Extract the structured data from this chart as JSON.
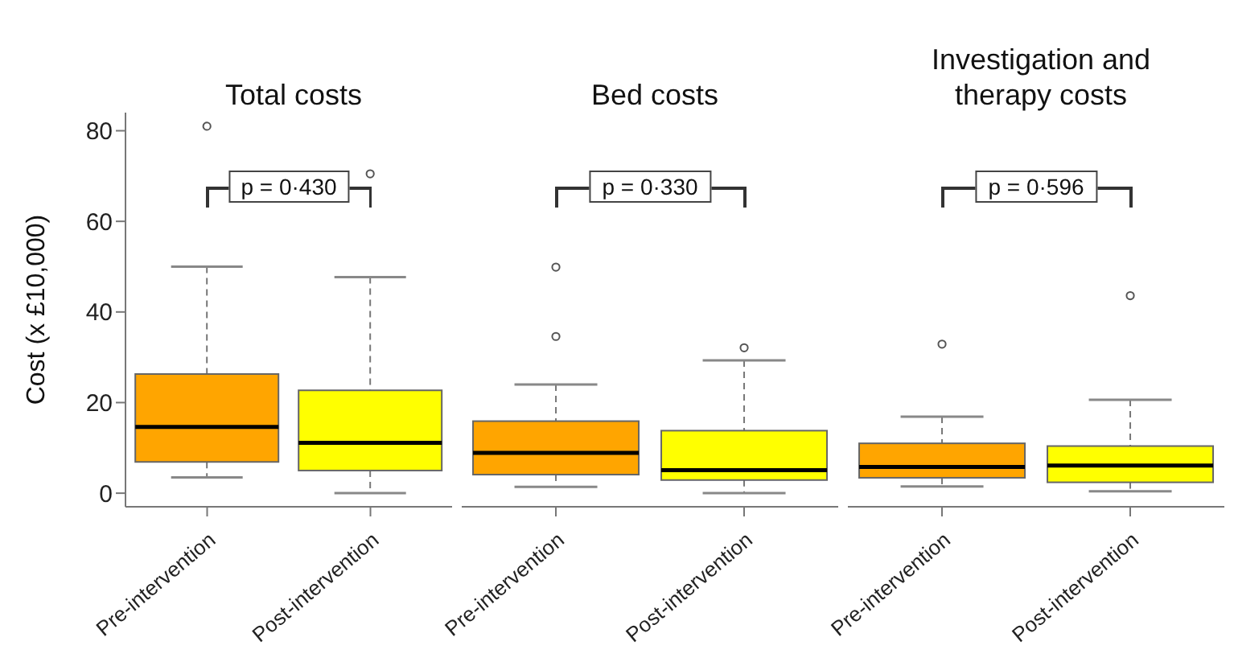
{
  "chart_data": [
    {
      "type": "box",
      "title": "Total costs",
      "ylabel": "Cost (x £10,000)",
      "categories": [
        "Pre-intervention",
        "Post-intervention"
      ],
      "colors": [
        "#ffa500",
        "#ffff00"
      ],
      "ylim": [
        -3,
        84
      ],
      "yticks": [
        0,
        20,
        40,
        60,
        80
      ],
      "legend": false,
      "grid": false,
      "annotations": [
        "p = 0·430"
      ],
      "boxes": [
        {
          "low": 3.5,
          "q1": 6.9,
          "median": 14.6,
          "q3": 26.3,
          "high": 50,
          "outliers": [
            81
          ]
        },
        {
          "low": 0,
          "q1": 5,
          "median": 11.1,
          "q3": 22.7,
          "high": 47.7,
          "outliers": [
            70.5
          ]
        }
      ]
    },
    {
      "type": "box",
      "title": "Bed costs",
      "categories": [
        "Pre-intervention",
        "Post-intervention"
      ],
      "colors": [
        "#ffa500",
        "#ffff00"
      ],
      "ylim": [
        -3,
        80
      ],
      "yticks": [
        0,
        20,
        40,
        60,
        80
      ],
      "tick_labels": "x",
      "legend": false,
      "grid": false,
      "annotations": [
        "p = 0·330"
      ],
      "boxes": [
        {
          "low": 1.4,
          "q1": 4.1,
          "median": 8.9,
          "q3": 15.9,
          "high": 24,
          "outliers": [
            34.6,
            49.9
          ]
        },
        {
          "low": 0,
          "q1": 2.9,
          "median": 5.1,
          "q3": 13.8,
          "high": 29.3,
          "outliers": [
            32.1
          ]
        }
      ]
    },
    {
      "type": "box",
      "title": "Investigation and therapy costs",
      "categories": [
        "Pre-intervention",
        "Post-intervention"
      ],
      "colors": [
        "#ffa500",
        "#ffff00"
      ],
      "ylim": [
        -3,
        80
      ],
      "yticks": [
        0,
        20,
        40,
        60,
        80
      ],
      "tick_labels": "x",
      "legend": false,
      "grid": false,
      "annotations": [
        "p = 0·596"
      ],
      "boxes": [
        {
          "low": 1.5,
          "q1": 3.4,
          "median": 5.8,
          "q3": 11,
          "high": 16.9,
          "outliers": [
            32.9
          ]
        },
        {
          "low": 0.4,
          "q1": 2.4,
          "median": 6.1,
          "q3": 10.4,
          "high": 20.6,
          "outliers": [
            43.6
          ]
        }
      ]
    }
  ]
}
